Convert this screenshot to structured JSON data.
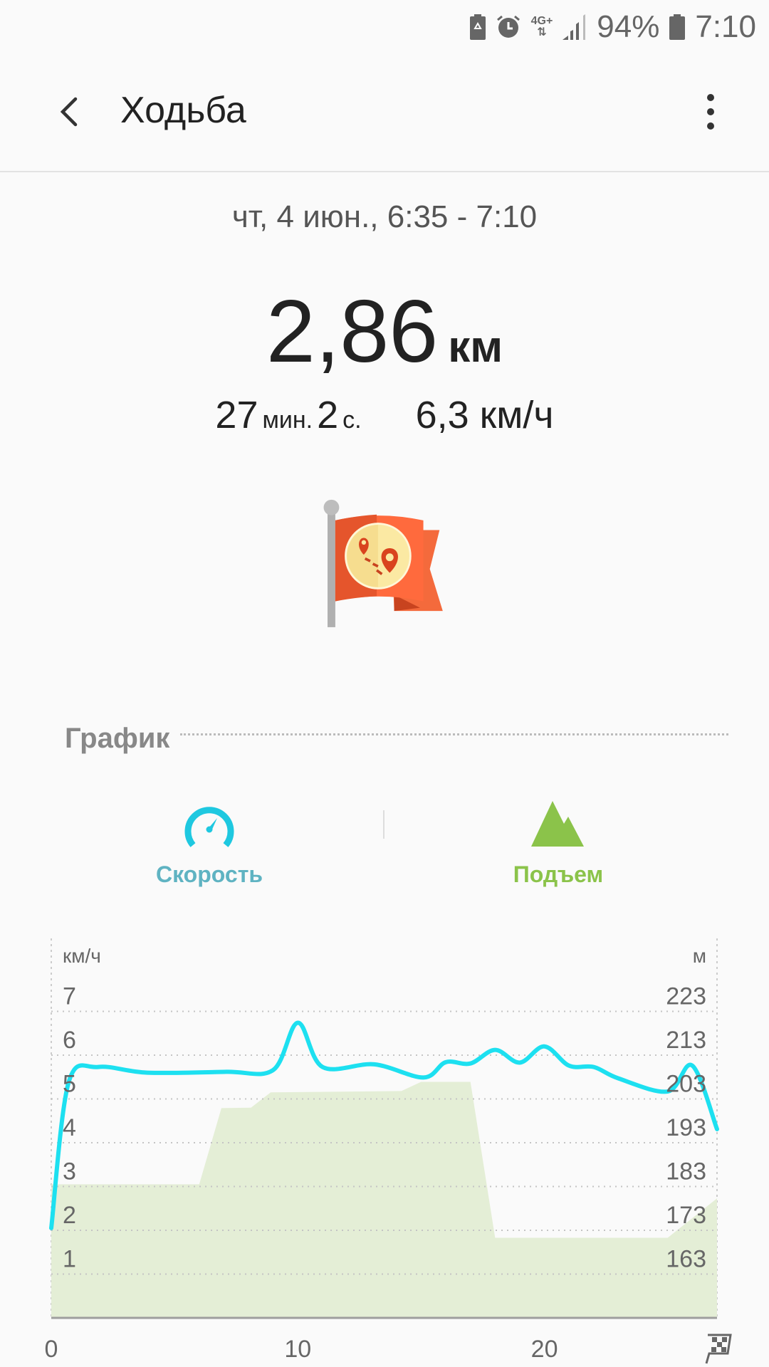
{
  "status_bar": {
    "battery_percent": "94%",
    "time": "7:10",
    "network": "4G+",
    "icons": [
      "battery-saver-icon",
      "alarm-icon",
      "network-4g-icon",
      "signal-icon",
      "battery-icon"
    ]
  },
  "app_bar": {
    "title": "Ходьба",
    "back_icon": "arrow-back-icon",
    "menu_icon": "more-vert-icon"
  },
  "summary": {
    "date_range": "чт, 4 июн., 6:35 - 7:10",
    "distance_value": "2,86",
    "distance_unit": "км",
    "duration_min": "27",
    "duration_min_unit": "мин.",
    "duration_sec": "2",
    "duration_sec_unit": "с.",
    "avg_speed": "6,3 км/ч"
  },
  "section": {
    "title": "График"
  },
  "tabs": [
    {
      "label": "Скорость",
      "icon": "speedometer-icon",
      "color": "#5fb3c2",
      "icon_color": "#1ec8e0"
    },
    {
      "label": "Подъем",
      "icon": "mountain-icon",
      "color": "#8bc34a",
      "icon_color": "#8bc34a"
    }
  ],
  "chart_data": {
    "type": "line",
    "left_axis_unit": "км/ч",
    "right_axis_unit": "м",
    "left_ticks": [
      "1",
      "2",
      "3",
      "4",
      "5",
      "6",
      "7"
    ],
    "right_ticks": [
      "163",
      "173",
      "183",
      "193",
      "203",
      "213",
      "223"
    ],
    "x_ticks": [
      "0",
      "10",
      "20"
    ],
    "x_end_icon": "checkered-flag-icon",
    "xlim": [
      0,
      27
    ],
    "ylim_left": [
      0,
      7.5
    ],
    "ylim_right": [
      153,
      228
    ],
    "grid": true,
    "series": [
      {
        "kind": "line",
        "axis": "left",
        "color": "#1de0f0",
        "x": [
          0,
          0.7,
          1.9,
          3.9,
          7.1,
          9.0,
          10.0,
          11.0,
          13.1,
          15.1,
          16.0,
          17.0,
          18.0,
          19.0,
          20.0,
          21.0,
          22.0,
          23.0,
          25.0,
          26.0,
          27.0
        ],
        "y": [
          2.05,
          5.37,
          5.73,
          5.6,
          5.62,
          5.66,
          6.74,
          5.73,
          5.79,
          5.49,
          5.84,
          5.81,
          6.12,
          5.83,
          6.2,
          5.76,
          5.73,
          5.47,
          5.17,
          5.76,
          4.31
        ]
      },
      {
        "kind": "area",
        "axis": "right",
        "color": "#e4eed6",
        "x": [
          0,
          6.0,
          6.9,
          8.1,
          8.9,
          14.2,
          15.0,
          17.0,
          18.0,
          25.0,
          27.0
        ],
        "y": [
          183.5,
          183.5,
          200.9,
          201,
          204.5,
          204.8,
          206.9,
          206.9,
          171.3,
          171.3,
          180.3
        ]
      }
    ]
  }
}
